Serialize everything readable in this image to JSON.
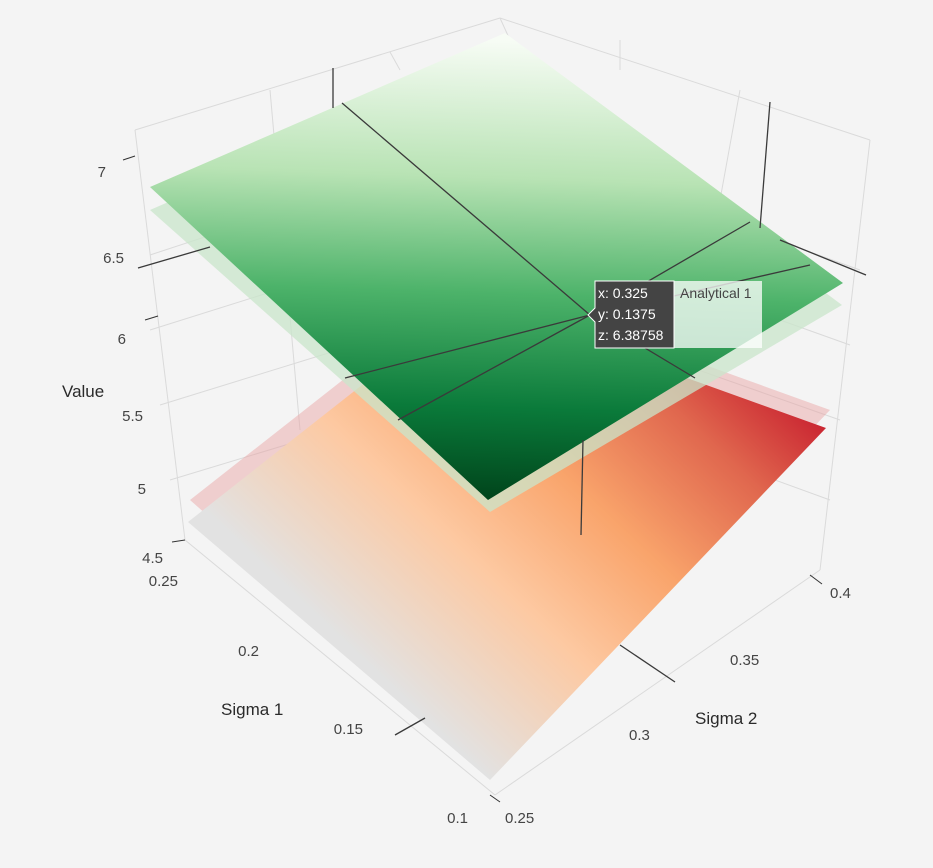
{
  "chart_data": {
    "type": "surface",
    "x_axis": {
      "label": "Sigma 2",
      "ticks": [
        "0.25",
        "0.3",
        "0.35",
        "0.4"
      ],
      "range": [
        0.25,
        0.4
      ]
    },
    "y_axis": {
      "label": "Sigma 1",
      "ticks": [
        "0.1",
        "0.15",
        "0.2",
        "0.25"
      ],
      "range": [
        0.1,
        0.25
      ]
    },
    "z_axis": {
      "label": "Value",
      "ticks": [
        "4.5",
        "5",
        "5.5",
        "6",
        "6.5",
        "7"
      ],
      "range": [
        4.5,
        7.0
      ]
    },
    "grid": true,
    "series": [
      {
        "name": "Analytical 1",
        "colorscale": [
          "#00441b",
          "#0a7a3a",
          "#4db36a",
          "#b8e3b4",
          "#f7fcf5"
        ],
        "corners": {
          "x0y0": 6.1,
          "x1y0": 7.1,
          "x0y1": 5.2,
          "x1y1": 6.9
        }
      },
      {
        "colorscale": [
          "#e2e2e2",
          "#fdc9a2",
          "#f9a46b",
          "#e0674e",
          "#c8202f"
        ],
        "corners": {
          "x0y0": 4.6,
          "x1y0": 6.2,
          "x0y1": 4.5,
          "x1y1": 5.8
        }
      }
    ],
    "hover": {
      "x": "x: 0.325",
      "y": "y: 0.1375",
      "z": "z: 6.38758",
      "series": "Analytical 1"
    }
  }
}
